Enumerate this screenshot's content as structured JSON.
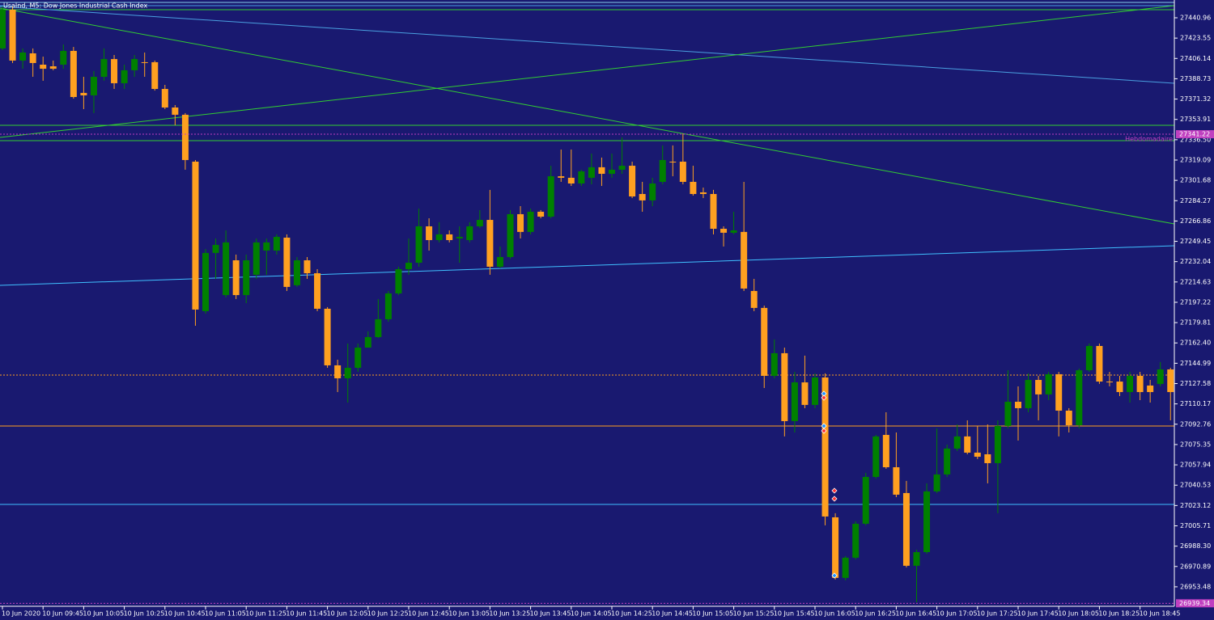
{
  "chart_data": {
    "type": "candlestick",
    "title": "UsaInd, M5: Dow Jones Industrial Cash Index",
    "background": "#191970",
    "up_color": "#008000",
    "down_color": "#ffa020",
    "grid": false,
    "ylim": [
      26936.8,
      27456.2
    ],
    "yticks": [
      27440.96,
      27423.55,
      27406.14,
      27388.73,
      27371.32,
      27353.91,
      {
        "value": 27336.5,
        "label": "27336.50"
      },
      27319.09,
      27301.68,
      27284.27,
      27266.86,
      27249.45,
      27232.04,
      27214.63,
      27197.22,
      27179.81,
      {
        "value": 27162.4,
        "label": "27162.40"
      },
      27144.99,
      27127.58,
      27110.17,
      27092.76,
      27075.35,
      27057.94,
      27040.53,
      27023.12,
      27005.71,
      {
        "value": 26988.3,
        "label": "26988.30"
      },
      26970.89,
      26953.48
    ],
    "levels": [
      {
        "name": "Hebdomadaire",
        "value": 27341.22,
        "color": "#c040c0"
      },
      {
        "value": 26939.34,
        "color": "#c040c0"
      }
    ],
    "categories": [
      "10 Jun 2020",
      null,
      null,
      null,
      "10 Jun 09:45",
      null,
      null,
      null,
      "10 Jun 10:05",
      null,
      null,
      null,
      "10 Jun 10:25",
      null,
      null,
      null,
      "10 Jun 10:45",
      null,
      null,
      null,
      "10 Jun 11:05",
      null,
      null,
      null,
      "10 Jun 11:25",
      null,
      null,
      null,
      "10 Jun 11:45",
      null,
      null,
      null,
      "10 Jun 12:05",
      null,
      null,
      null,
      "10 Jun 12:25",
      null,
      null,
      null,
      "10 Jun 12:45",
      null,
      null,
      null,
      "10 Jun 13:05",
      null,
      null,
      null,
      "10 Jun 13:25",
      null,
      null,
      null,
      "10 Jun 13:45",
      null,
      null,
      null,
      "10 Jun 14:05",
      null,
      null,
      null,
      "10 Jun 14:25",
      null,
      null,
      null,
      "10 Jun 14:45",
      null,
      null,
      null,
      "10 Jun 15:05",
      null,
      null,
      null,
      "10 Jun 15:25",
      null,
      null,
      null,
      "10 Jun 15:45",
      null,
      null,
      null,
      "10 Jun 16:05",
      null,
      null,
      null,
      "10 Jun 16:25",
      null,
      null,
      null,
      "10 Jun 16:45",
      null,
      null,
      null,
      "10 Jun 17:05",
      null,
      null,
      null,
      "10 Jun 17:25",
      null,
      null,
      null,
      "10 Jun 17:45",
      null,
      null,
      null,
      "10 Jun 18:05",
      null,
      null,
      null,
      "10 Jun 18:25",
      null,
      null,
      null,
      "10 Jun 18:45",
      null,
      null,
      null
    ],
    "open": [
      27414.7,
      27447.9,
      27404.3,
      27410.5,
      27400.8,
      27399.4,
      27400.8,
      27412.6,
      27376.6,
      27374.5,
      27390.4,
      27405.6,
      27384.9,
      27396.0,
      27402.9,
      27402.9,
      27380.0,
      27364.1,
      27357.9,
      27317.7,
      27189.6,
      27239.5,
      27203.4,
      27233.2,
      27203.4,
      27220.8,
      27241.5,
      27241.5,
      27252.6,
      27211.8,
      27233.2,
      27222.1,
      27191.7,
      27143.2,
      27132.1,
      27141.1,
      27158.4,
      27167.4,
      27182.7,
      27204.8,
      27225.6,
      27231.1,
      27262.3,
      27250.5,
      27255.4,
      27251.9,
      27250.5,
      27262.3,
      27267.8,
      27227.7,
      27236.0,
      27272.7,
      27257.5,
      27274.8,
      27270.6,
      27305.2,
      27303.9,
      27299.0,
      27303.9,
      27312.9,
      27307.3,
      27310.8,
      27314.2,
      27290.0,
      27284.5,
      27300.4,
      27317.7,
      27317.7,
      27300.4,
      27291.4,
      27290.0,
      27260.2,
      27256.8,
      27257.5,
      27206.9,
      27192.4,
      27134.2,
      27153.6,
      27095.4,
      27128.6,
      27109.3,
      27132.8,
      27013.0,
      26961.1,
      26978.4,
      27007.5,
      27047.6,
      27083.6,
      27055.9,
      27033.8,
      26971.5,
      26983.2,
      27035.2,
      27049.7,
      27071.9,
      27082.3,
      27068.4,
      27067.0,
      27059.4,
      27091.3,
      27112.0,
      27106.5,
      27130.7,
      27118.3,
      27135.6,
      27104.4,
      27091.9,
      27139.0,
      27159.8,
      27129.3,
      27129.3,
      27120.3,
      27134.2,
      27125.9,
      27127.3,
      27139.7
    ],
    "high": [
      27450.7,
      27450.7,
      27414.7,
      27414.7,
      27407.7,
      27404.3,
      27418.1,
      27416.0,
      27390.4,
      27395.3,
      27414.7,
      27409.1,
      27400.8,
      27409.1,
      27411.2,
      27404.3,
      27383.5,
      27366.2,
      27359.3,
      27319.1,
      27242.9,
      27251.9,
      27258.8,
      27238.1,
      27238.1,
      27251.9,
      27251.9,
      27255.4,
      27255.4,
      27236.0,
      27236.0,
      27225.6,
      27193.1,
      27148.0,
      27161.9,
      27161.9,
      27172.3,
      27200.0,
      27206.9,
      27227.7,
      27251.9,
      27277.5,
      27269.2,
      27265.8,
      27258.8,
      27262.3,
      27265.8,
      27276.2,
      27293.5,
      27245.0,
      27276.2,
      27279.6,
      27277.5,
      27276.2,
      27314.2,
      27328.1,
      27328.1,
      27310.8,
      27324.6,
      27321.2,
      27324.6,
      27338.5,
      27317.7,
      27300.4,
      27303.9,
      27331.6,
      27331.6,
      27341.9,
      27314.2,
      27295.5,
      27293.5,
      27262.3,
      27274.8,
      27300.4,
      27217.3,
      27194.4,
      27165.4,
      27158.4,
      27137.6,
      27151.5,
      27136.3,
      27136.3,
      27016.5,
      26979.8,
      27009.5,
      27051.1,
      27083.6,
      27103.0,
      27085.7,
      27044.2,
      26985.3,
      27042.1,
      27089.2,
      27075.3,
      27092.6,
      27096.1,
      27091.3,
      27092.6,
      27096.1,
      27139.0,
      27125.2,
      27136.3,
      27134.2,
      27137.6,
      27137.6,
      27106.5,
      27140.4,
      27161.9,
      27161.9,
      27137.6,
      27134.2,
      27137.6,
      27137.6,
      27130.7,
      27146.0,
      27141.1
    ],
    "low": [
      27413.3,
      27402.2,
      27397.3,
      27390.4,
      27387.0,
      27396.0,
      27397.3,
      27371.7,
      27362.7,
      27359.3,
      27387.0,
      27380.0,
      27380.0,
      27390.4,
      27390.4,
      27378.6,
      27362.7,
      27348.9,
      27310.8,
      27177.1,
      27187.5,
      27217.3,
      27201.4,
      27200.0,
      27196.5,
      27217.3,
      27220.8,
      27238.1,
      27206.9,
      27210.4,
      27217.3,
      27189.6,
      27141.1,
      27120.3,
      27111.3,
      27137.6,
      27158.4,
      27166.7,
      27180.6,
      27203.4,
      27220.8,
      27227.7,
      27241.5,
      27248.5,
      27248.5,
      27231.1,
      27248.5,
      27260.9,
      27220.8,
      27226.3,
      27234.6,
      27251.9,
      27255.4,
      27269.2,
      27269.2,
      27300.4,
      27296.9,
      27296.9,
      27298.3,
      27296.9,
      27303.9,
      27307.3,
      27286.5,
      27274.8,
      27279.6,
      27298.3,
      27305.2,
      27298.3,
      27288.6,
      27286.5,
      27255.4,
      27245.0,
      27255.4,
      27206.9,
      27189.6,
      27123.8,
      27132.1,
      27082.3,
      27085.7,
      27106.5,
      27106.5,
      27006.1,
      26959.7,
      26959.0,
      26977.0,
      27006.1,
      27046.2,
      27054.6,
      27030.3,
      26970.1,
      26940.3,
      26981.8,
      27033.8,
      27047.6,
      27069.8,
      27067.0,
      27062.9,
      27042.1,
      27016.5,
      27089.2,
      27078.8,
      27103.0,
      27096.1,
      27113.4,
      27082.3,
      27085.7,
      27089.2,
      27137.6,
      27127.3,
      27125.2,
      27116.9,
      27111.3,
      27113.4,
      27111.3,
      27125.2,
      27096.1
    ],
    "close": [
      27447.9,
      27404.3,
      27411.2,
      27402.2,
      27397.3,
      27397.3,
      27412.6,
      27373.1,
      27374.5,
      27390.4,
      27405.6,
      27384.9,
      27396.0,
      27405.6,
      27402.9,
      27380.0,
      27364.1,
      27357.9,
      27319.1,
      27191.0,
      27239.5,
      27246.4,
      27248.5,
      27203.4,
      27233.2,
      27248.5,
      27248.5,
      27253.3,
      27210.4,
      27233.2,
      27222.1,
      27191.7,
      27143.2,
      27132.1,
      27141.1,
      27158.4,
      27167.4,
      27182.7,
      27204.8,
      27225.6,
      27231.1,
      27262.3,
      27250.5,
      27255.4,
      27250.5,
      27253.3,
      27262.3,
      27267.8,
      27227.7,
      27236.0,
      27272.7,
      27257.5,
      27274.8,
      27270.6,
      27305.2,
      27303.9,
      27299.0,
      27309.4,
      27312.9,
      27307.3,
      27310.8,
      27314.2,
      27287.9,
      27284.5,
      27299.0,
      27319.1,
      27317.7,
      27300.4,
      27290.0,
      27290.0,
      27260.2,
      27256.8,
      27258.8,
      27209.0,
      27192.4,
      27134.2,
      27153.6,
      27095.4,
      27128.6,
      27109.3,
      27132.8,
      27013.7,
      26961.1,
      26978.4,
      27007.5,
      27047.6,
      27082.3,
      27055.9,
      27032.4,
      26971.5,
      26983.2,
      27035.2,
      27049.7,
      27071.9,
      27082.3,
      27068.4,
      27064.9,
      27059.4,
      27091.3,
      27112.0,
      27106.5,
      27130.7,
      27118.3,
      27135.6,
      27104.4,
      27091.9,
      27139.0,
      27159.8,
      27129.3,
      27129.3,
      27120.3,
      27134.2,
      27120.3,
      27120.3,
      27139.7,
      27120.3
    ]
  }
}
